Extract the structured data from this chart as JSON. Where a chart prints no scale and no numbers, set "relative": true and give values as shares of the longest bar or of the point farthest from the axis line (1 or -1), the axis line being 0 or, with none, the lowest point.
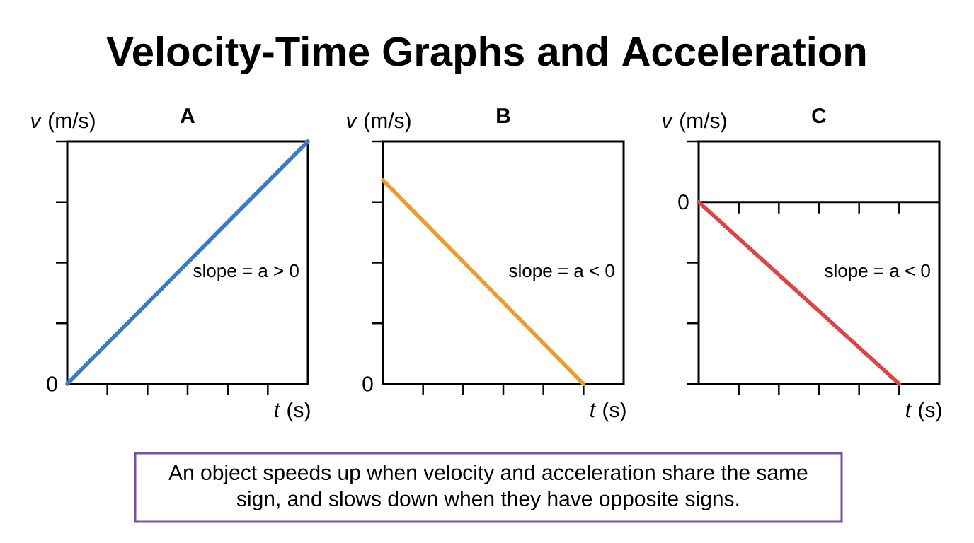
{
  "chart_data": [
    {
      "type": "other",
      "title": "Velocity-Time Graphs and Acceleration"
    },
    {
      "type": "line",
      "title": "A",
      "xlabel": "*t* (s)",
      "ylabel": "*v* (m/s)",
      "relative": true,
      "categories": [
        null,
        null,
        null,
        null,
        null,
        null,
        null
      ],
      "values": [
        0,
        0.167,
        0.333,
        0.5,
        0.667,
        0.833,
        1
      ],
      "color": "#3a7bc8",
      "annotations": [
        "0",
        "slope = a > 0"
      ]
    },
    {
      "type": "line",
      "title": "B",
      "xlabel": "*t* (s)",
      "ylabel": "*v* (m/s)",
      "relative": true,
      "categories": [
        null,
        null,
        null,
        null,
        null,
        null,
        null
      ],
      "values": [
        1,
        0.8,
        0.6,
        0.4,
        0.2,
        0,
        null
      ],
      "color": "#f29a27",
      "annotations": [
        "0",
        "slope = a < 0"
      ]
    },
    {
      "type": "line",
      "title": "C",
      "xlabel": "*t* (s)",
      "ylabel": "*v* (m/s)",
      "relative": true,
      "categories": [
        null,
        null,
        null,
        null,
        null,
        null,
        null
      ],
      "values": [
        0,
        -0.2,
        -0.4,
        -0.6,
        -0.8,
        -1,
        null
      ],
      "color": "#e04343",
      "ref_lines": [
        {
          "axis": "y",
          "value": 0
        }
      ],
      "annotations": [
        "0",
        "slope = a < 0"
      ]
    },
    {
      "type": "other",
      "annotations": [
        "An object speeds up when velocity and acceleration share the same sign, and slows down when they have opposite signs."
      ]
    }
  ]
}
